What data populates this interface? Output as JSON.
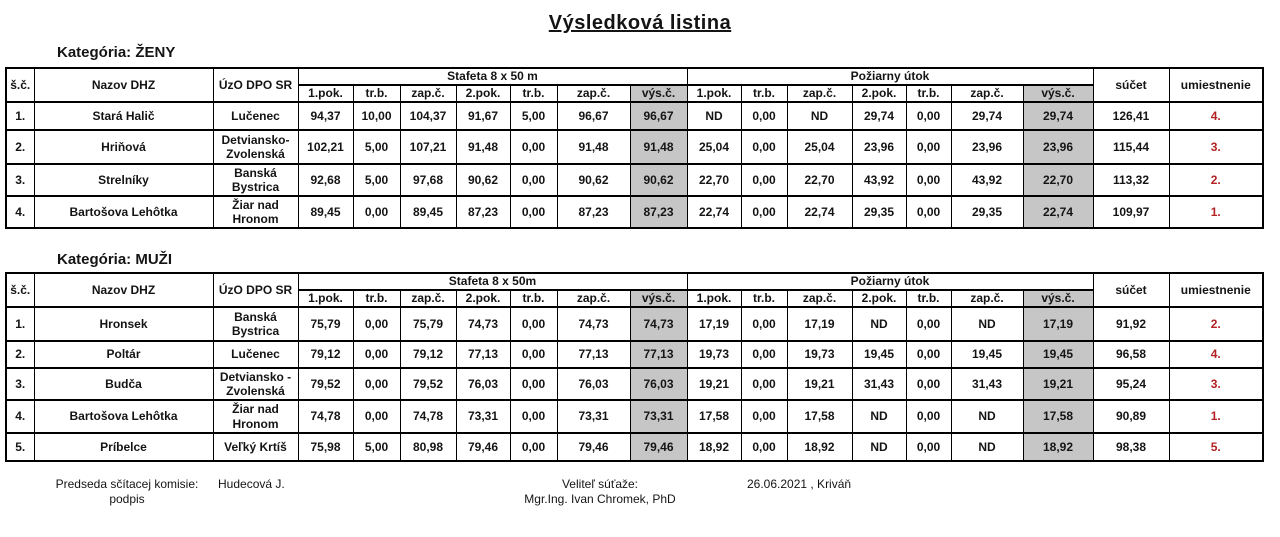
{
  "title": "Výsledková listina",
  "colors": {
    "shade_gray": "#c6c6c6",
    "place_red": "#b22222",
    "border_black": "#000000"
  },
  "tables": [
    {
      "key": "zeny",
      "category_label": "Kategória: ŽENY",
      "headers": {
        "sc": "š.č.",
        "nazov": "Nazov DHZ",
        "uzo": "ÚzO DPO SR",
        "stafeta_group": "Stafeta 8 x 50 m",
        "poziarny_group": "Požiarny útok",
        "sub_headers": [
          "1.pok.",
          "tr.b.",
          "zap.č.",
          "2.pok.",
          "tr.b.",
          "zap.č.",
          "výs.č."
        ],
        "sucet": "súčet",
        "umiestnenie": "umiestnenie"
      },
      "rows": [
        {
          "sc": "1.",
          "nazov": "Stará Halič",
          "uzo": "Lučenec",
          "stafeta": [
            "94,37",
            "10,00",
            "104,37",
            "91,67",
            "5,00",
            "96,67",
            "96,67"
          ],
          "poziarny": [
            "ND",
            "0,00",
            "ND",
            "29,74",
            "0,00",
            "29,74",
            "29,74"
          ],
          "sucet": "126,41",
          "place": "4."
        },
        {
          "sc": "2.",
          "nazov": "Hriňová",
          "uzo": "Detviansko-Zvolenská",
          "stafeta": [
            "102,21",
            "5,00",
            "107,21",
            "91,48",
            "0,00",
            "91,48",
            "91,48"
          ],
          "poziarny": [
            "25,04",
            "0,00",
            "25,04",
            "23,96",
            "0,00",
            "23,96",
            "23,96"
          ],
          "sucet": "115,44",
          "place": "3."
        },
        {
          "sc": "3.",
          "nazov": "Strelníky",
          "uzo": "Banská Bystrica",
          "stafeta": [
            "92,68",
            "5,00",
            "97,68",
            "90,62",
            "0,00",
            "90,62",
            "90,62"
          ],
          "poziarny": [
            "22,70",
            "0,00",
            "22,70",
            "43,92",
            "0,00",
            "43,92",
            "22,70"
          ],
          "sucet": "113,32",
          "place": "2."
        },
        {
          "sc": "4.",
          "nazov": "Bartošova Lehôtka",
          "uzo": "Žiar nad Hronom",
          "stafeta": [
            "89,45",
            "0,00",
            "89,45",
            "87,23",
            "0,00",
            "87,23",
            "87,23"
          ],
          "poziarny": [
            "22,74",
            "0,00",
            "22,74",
            "29,35",
            "0,00",
            "29,35",
            "22,74"
          ],
          "sucet": "109,97",
          "place": "1."
        }
      ]
    },
    {
      "key": "muzi",
      "category_label": "Kategória: MUŽI",
      "headers": {
        "sc": "š.č.",
        "nazov": "Nazov DHZ",
        "uzo": "ÚzO DPO SR",
        "stafeta_group": "Stafeta 8 x 50m",
        "poziarny_group": "Požiarny útok",
        "sub_headers": [
          "1.pok.",
          "tr.b.",
          "zap.č.",
          "2.pok.",
          "tr.b.",
          "zap.č.",
          "výs.č."
        ],
        "sucet": "súčet",
        "umiestnenie": "umiestnenie"
      },
      "rows": [
        {
          "sc": "1.",
          "nazov": "Hronsek",
          "uzo": "Banská Bystrica",
          "stafeta": [
            "75,79",
            "0,00",
            "75,79",
            "74,73",
            "0,00",
            "74,73",
            "74,73"
          ],
          "poziarny": [
            "17,19",
            "0,00",
            "17,19",
            "ND",
            "0,00",
            "ND",
            "17,19"
          ],
          "sucet": "91,92",
          "place": "2."
        },
        {
          "sc": "2.",
          "nazov": "Poltár",
          "uzo": "Lučenec",
          "stafeta": [
            "79,12",
            "0,00",
            "79,12",
            "77,13",
            "0,00",
            "77,13",
            "77,13"
          ],
          "poziarny": [
            "19,73",
            "0,00",
            "19,73",
            "19,45",
            "0,00",
            "19,45",
            "19,45"
          ],
          "sucet": "96,58",
          "place": "4."
        },
        {
          "sc": "3.",
          "nazov": "Budča",
          "uzo": "Detviansko - Zvolenská",
          "stafeta": [
            "79,52",
            "0,00",
            "79,52",
            "76,03",
            "0,00",
            "76,03",
            "76,03"
          ],
          "poziarny": [
            "19,21",
            "0,00",
            "19,21",
            "31,43",
            "0,00",
            "31,43",
            "19,21"
          ],
          "sucet": "95,24",
          "place": "3."
        },
        {
          "sc": "4.",
          "nazov": "Bartošova Lehôtka",
          "uzo": "Žiar nad Hronom",
          "stafeta": [
            "74,78",
            "0,00",
            "74,78",
            "73,31",
            "0,00",
            "73,31",
            "73,31"
          ],
          "poziarny": [
            "17,58",
            "0,00",
            "17,58",
            "ND",
            "0,00",
            "ND",
            "17,58"
          ],
          "sucet": "90,89",
          "place": "1."
        },
        {
          "sc": "5.",
          "nazov": "Príbelce",
          "uzo": "Veľký Krtíš",
          "stafeta": [
            "75,98",
            "5,00",
            "80,98",
            "79,46",
            "0,00",
            "79,46",
            "79,46"
          ],
          "poziarny": [
            "18,92",
            "0,00",
            "18,92",
            "ND",
            "0,00",
            "ND",
            "18,92"
          ],
          "sucet": "98,38",
          "place": "5."
        }
      ]
    }
  ],
  "footer": {
    "chairman_label": "Predseda sčítacej komisie:",
    "signature_label": "podpis",
    "chairman_name": "Hudecová J.",
    "commander_label": "Veliteľ súťaže:",
    "commander_name": "Mgr.Ing. Ivan Chromek, PhD",
    "date_place": "26.06.2021 , Kriváň"
  }
}
